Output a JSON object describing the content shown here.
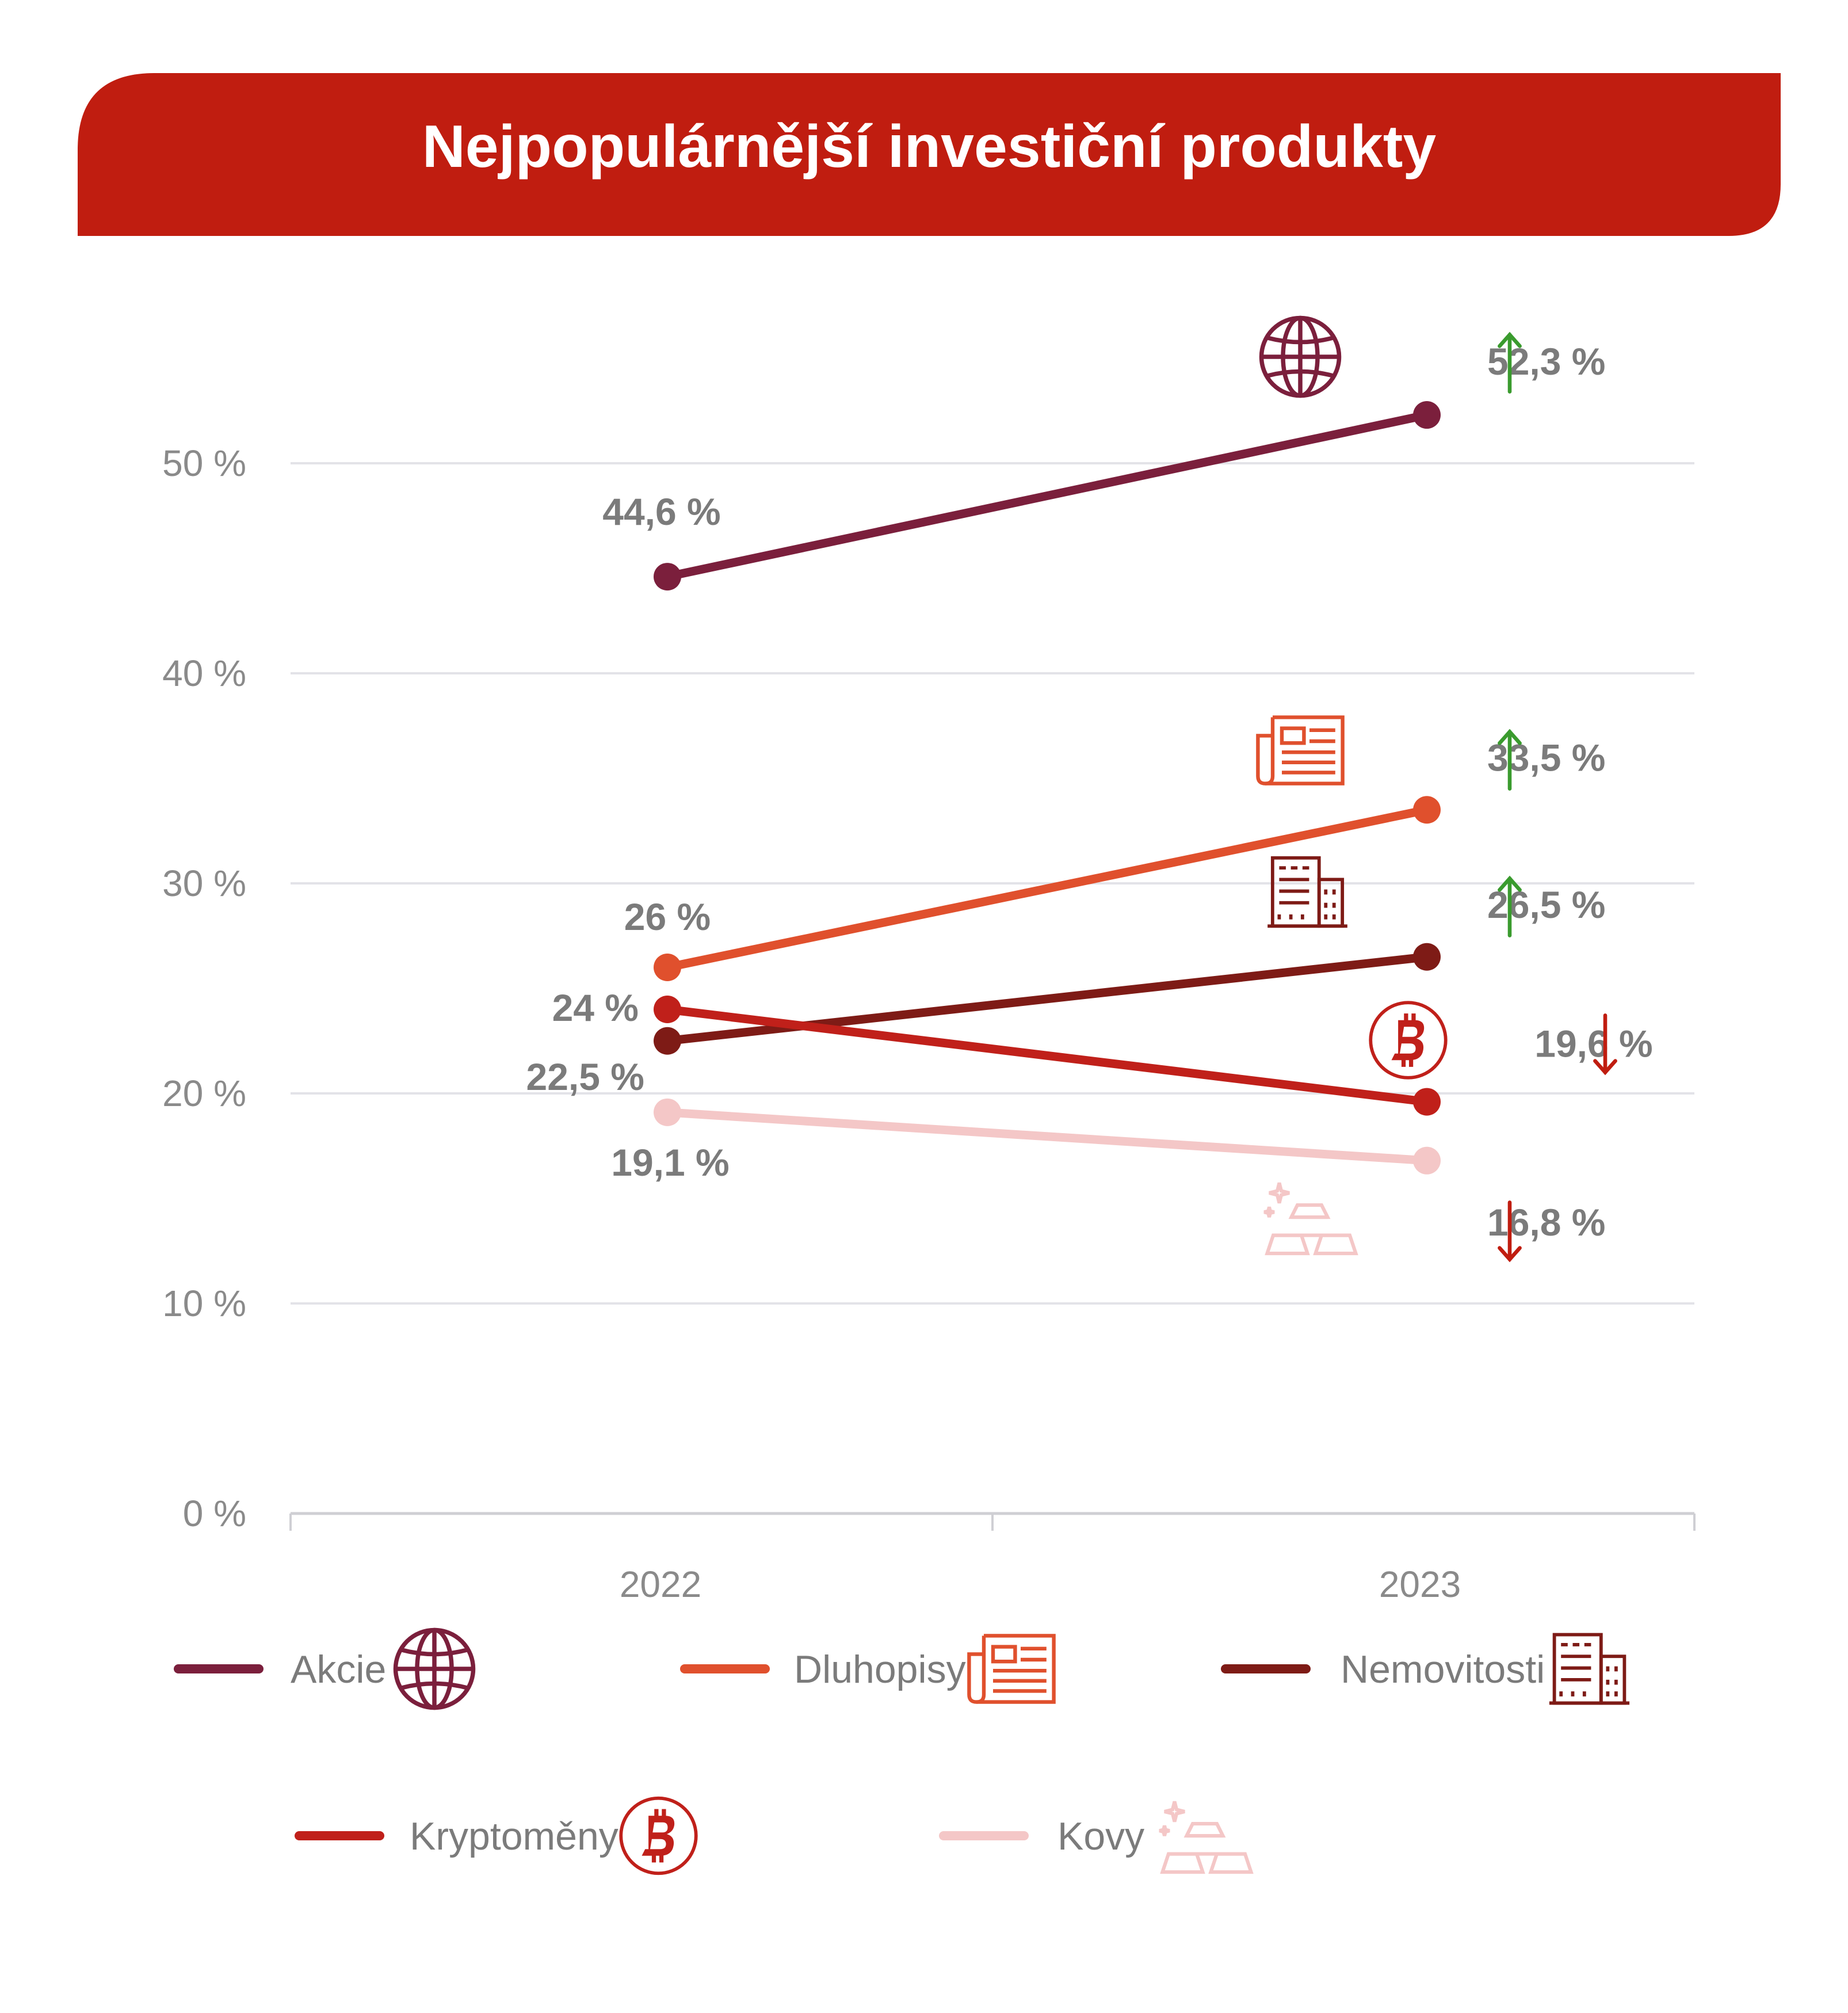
{
  "chart_data": {
    "type": "line",
    "title": "Nejpopulárnější investiční produkty",
    "x": [
      "2022",
      "2023"
    ],
    "ylim": [
      0,
      50
    ],
    "yticks": [
      0,
      10,
      20,
      30,
      40,
      50
    ],
    "ytick_labels": [
      "0 %",
      "10 %",
      "20 %",
      "30 %",
      "40 %",
      "50 %"
    ],
    "grid": true,
    "legend_position": "bottom",
    "series": [
      {
        "key": "akcie",
        "name": "Akcie",
        "values": [
          44.6,
          52.3
        ],
        "labels": [
          "44,6 %",
          "52,3 %"
        ],
        "trend": "up",
        "color": "#7b1f3c",
        "icon": "globe-icon"
      },
      {
        "key": "dluhopisy",
        "name": "Dluhopisy",
        "values": [
          26,
          33.5
        ],
        "labels": [
          "26 %",
          "33,5 %"
        ],
        "trend": "up",
        "color": "#e0502d",
        "icon": "document-icon"
      },
      {
        "key": "nemovitosti",
        "name": "Nemovitosti",
        "values": [
          22.5,
          26.5
        ],
        "labels": [
          "22,5 %",
          "26,5 %"
        ],
        "trend": "up",
        "color": "#7e1b16",
        "icon": "building-icon"
      },
      {
        "key": "kryptomeny",
        "name": "Kryptoměny",
        "values": [
          24,
          19.6
        ],
        "labels": [
          "24 %",
          "19,6 %"
        ],
        "trend": "down",
        "color": "#c0201a",
        "icon": "bitcoin-icon"
      },
      {
        "key": "kovy",
        "name": "Kovy",
        "values": [
          19.1,
          16.8
        ],
        "labels": [
          "19,1 %",
          "16,8 %"
        ],
        "trend": "down",
        "color": "#f4c7c7",
        "icon": "gold-bars-icon"
      }
    ]
  },
  "colors": {
    "header": "#c01d10",
    "grid": "#e3e3e8",
    "arrow_up": "#3a9b2e",
    "arrow_down": "#c01d10",
    "axis_text": "#8a8a8a",
    "value_text": "#7b7b7b"
  }
}
